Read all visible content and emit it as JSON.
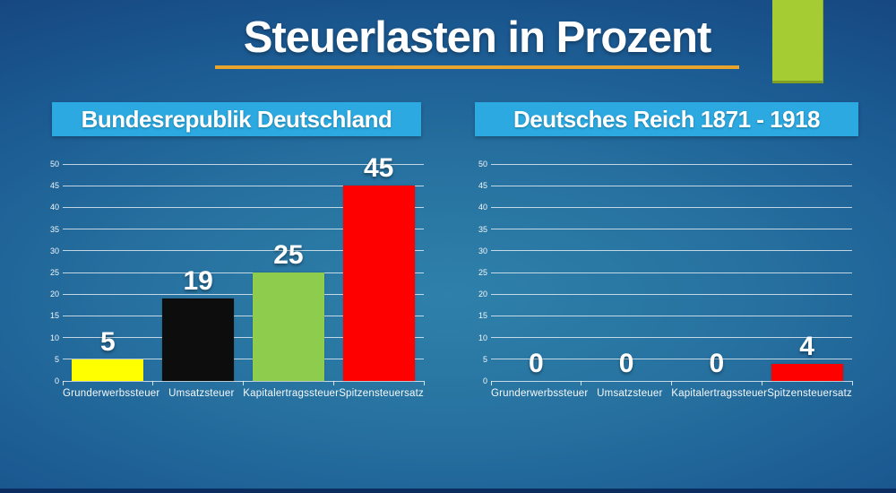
{
  "slide": {
    "title": "Steuerlasten in Prozent",
    "colors": {
      "title_underline": "#E8A42C",
      "accent_rect": "#A6CC34",
      "header_bg": "#2BA9E0",
      "background_center": "#2E81AA",
      "background_edge": "#133A70",
      "text": "#FFFFFF"
    }
  },
  "panels": [
    {
      "header": "Bundesrepublik Deutschland"
    },
    {
      "header": "Deutsches Reich 1871 - 1918"
    }
  ],
  "chart_data": [
    {
      "type": "bar",
      "title": "Bundesrepublik Deutschland",
      "categories": [
        "Grunderwerbssteuer",
        "Umsatzsteuer",
        "Kapitalertragssteuer",
        "Spitzensteuersatz"
      ],
      "values": [
        5,
        19,
        25,
        45
      ],
      "bar_colors": [
        "#FFFF00",
        "#0D0D0D",
        "#8ECC4D",
        "#FF0000"
      ],
      "data_labels": [
        "5",
        "19",
        "25",
        "45"
      ],
      "xlabel": "",
      "ylabel": "",
      "ylim": [
        0,
        50
      ],
      "ytick_step": 5,
      "yticks": [
        0,
        5,
        10,
        15,
        20,
        25,
        30,
        35,
        40,
        45,
        50
      ],
      "grid": true,
      "legend": false
    },
    {
      "type": "bar",
      "title": "Deutsches Reich 1871 - 1918",
      "categories": [
        "Grunderwerbssteuer",
        "Umsatzsteuer",
        "Kapitalertragssteuer",
        "Spitzensteuersatz"
      ],
      "values": [
        0,
        0,
        0,
        4
      ],
      "bar_colors": [
        "#FFFF00",
        "#0D0D0D",
        "#8ECC4D",
        "#FF0000"
      ],
      "data_labels": [
        "0",
        "0",
        "0",
        "4"
      ],
      "xlabel": "",
      "ylabel": "",
      "ylim": [
        0,
        50
      ],
      "ytick_step": 5,
      "yticks": [
        0,
        5,
        10,
        15,
        20,
        25,
        30,
        35,
        40,
        45,
        50
      ],
      "grid": true,
      "legend": false
    }
  ]
}
